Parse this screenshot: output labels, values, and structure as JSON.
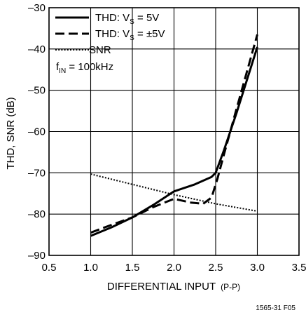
{
  "chart_data": {
    "type": "line",
    "xlabel_main": "DIFFERENTIAL INPUT",
    "xlabel_unit": "(P-P)",
    "ylabel": "THD, SNR (dB)",
    "xlim": [
      0.5,
      3.5
    ],
    "ylim": [
      -90,
      -30
    ],
    "x_ticks": [
      0.5,
      1.0,
      1.5,
      2.0,
      2.5,
      3.0,
      3.5
    ],
    "x_tick_labels": [
      "0.5",
      "1.0",
      "1.5",
      "2.0",
      "2.5",
      "3.0",
      "3.5"
    ],
    "y_ticks": [
      -90,
      -80,
      -70,
      -60,
      -50,
      -40,
      -30
    ],
    "y_tick_labels": [
      "–90",
      "–80",
      "–70",
      "–60",
      "–50",
      "–40",
      "–30"
    ],
    "grid": true,
    "legend_position": "top-left",
    "legend": {
      "entry1": {
        "pre": "THD: V",
        "sub": "S",
        "post": " = 5V"
      },
      "entry2": {
        "pre": "THD: V",
        "sub": "S",
        "post": " = ±5V"
      },
      "entry3": {
        "pre": "SNR",
        "sub": "",
        "post": ""
      },
      "fin": {
        "pre": "f",
        "sub": "IN",
        "post": " = 100kHz"
      }
    },
    "series": [
      {
        "style": "solid",
        "x": [
          1.0,
          1.25,
          1.5,
          1.75,
          2.0,
          2.25,
          2.45,
          2.5,
          2.6,
          2.75,
          3.0
        ],
        "y": [
          -85.3,
          -83.2,
          -80.8,
          -77.8,
          -74.5,
          -72.8,
          -71.0,
          -70.0,
          -64.5,
          -55.5,
          -39.5
        ]
      },
      {
        "style": "dashed",
        "x": [
          1.0,
          1.25,
          1.5,
          1.75,
          2.0,
          2.2,
          2.35,
          2.45,
          2.52,
          2.6,
          2.75,
          3.0
        ],
        "y": [
          -84.5,
          -82.6,
          -80.8,
          -78.3,
          -76.3,
          -77.2,
          -77.5,
          -76.0,
          -71.5,
          -65.5,
          -54.5,
          -36.5
        ]
      },
      {
        "style": "dotted",
        "x": [
          1.0,
          1.5,
          2.0,
          2.5,
          3.0
        ],
        "y": [
          -70.3,
          -72.8,
          -75.3,
          -77.5,
          -79.3
        ]
      }
    ],
    "footnote": "1565-31 F05"
  }
}
